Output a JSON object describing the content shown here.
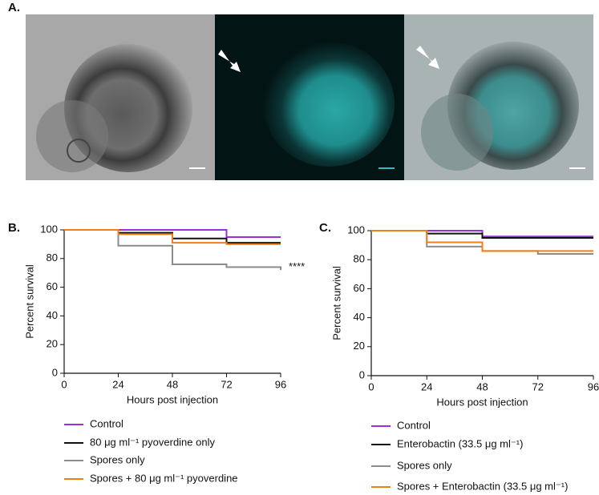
{
  "image_panel": {
    "label": "A."
  },
  "chart_data": [
    {
      "type": "step",
      "panel_label": "B.",
      "xlabel": "Hours post injection",
      "ylabel": "Percent survival",
      "x": [
        0,
        24,
        48,
        72,
        96
      ],
      "xlim": [
        0,
        96
      ],
      "xticks": [
        0,
        24,
        48,
        72,
        96
      ],
      "ylim": [
        0,
        100
      ],
      "yticks": [
        0,
        20,
        40,
        60,
        80,
        100
      ],
      "annotation": "****",
      "series": [
        {
          "name": "Control",
          "color": "#9b30d9",
          "values": [
            100,
            100,
            100,
            95,
            95
          ]
        },
        {
          "name": "80 μg ml⁻¹ pyoverdine only",
          "color": "#111111",
          "values": [
            100,
            98,
            94,
            91,
            91
          ]
        },
        {
          "name": "Spores only",
          "color": "#8c8c8c",
          "values": [
            100,
            89,
            76,
            74,
            72
          ]
        },
        {
          "name": "Spores + 80 μg ml⁻¹ pyoverdine",
          "color": "#f07f1a",
          "values": [
            100,
            97,
            91,
            90,
            90
          ]
        }
      ]
    },
    {
      "type": "step",
      "panel_label": "C.",
      "xlabel": "Hours post injection",
      "ylabel": "Percent survival",
      "x": [
        0,
        24,
        48,
        72,
        96
      ],
      "xlim": [
        0,
        96
      ],
      "xticks": [
        0,
        24,
        48,
        72,
        96
      ],
      "ylim": [
        0,
        100
      ],
      "yticks": [
        0,
        20,
        40,
        60,
        80,
        100
      ],
      "series": [
        {
          "name": "Control",
          "color": "#9b30d9",
          "values": [
            100,
            100,
            96,
            96,
            96
          ]
        },
        {
          "name": "Enterobactin (33.5 μg ml⁻¹)",
          "color": "#111111",
          "values": [
            100,
            98,
            95,
            95,
            95
          ]
        },
        {
          "name": "Spores only",
          "color": "#8c8c8c",
          "values": [
            100,
            89,
            86,
            84,
            84
          ]
        },
        {
          "name": "Spores + Enterobactin (33.5 μg ml⁻¹)",
          "color": "#f07f1a",
          "values": [
            100,
            92,
            86,
            86,
            86
          ]
        }
      ]
    }
  ]
}
